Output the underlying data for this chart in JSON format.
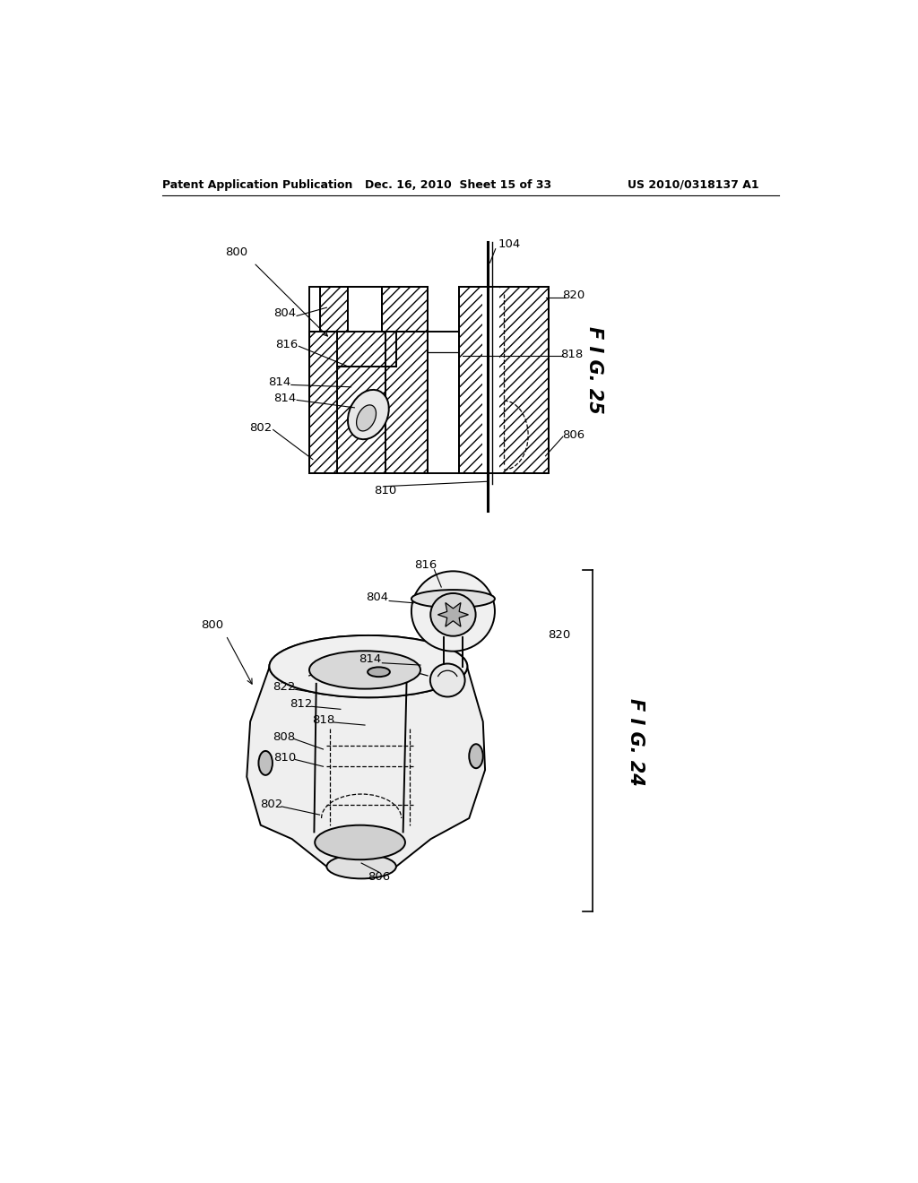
{
  "background_color": "#ffffff",
  "header_left": "Patent Application Publication",
  "header_center": "Dec. 16, 2010  Sheet 15 of 33",
  "header_right": "US 2010/0318137 A1",
  "fig25_label": "F I G. 25",
  "fig24_label": "F I G. 24"
}
